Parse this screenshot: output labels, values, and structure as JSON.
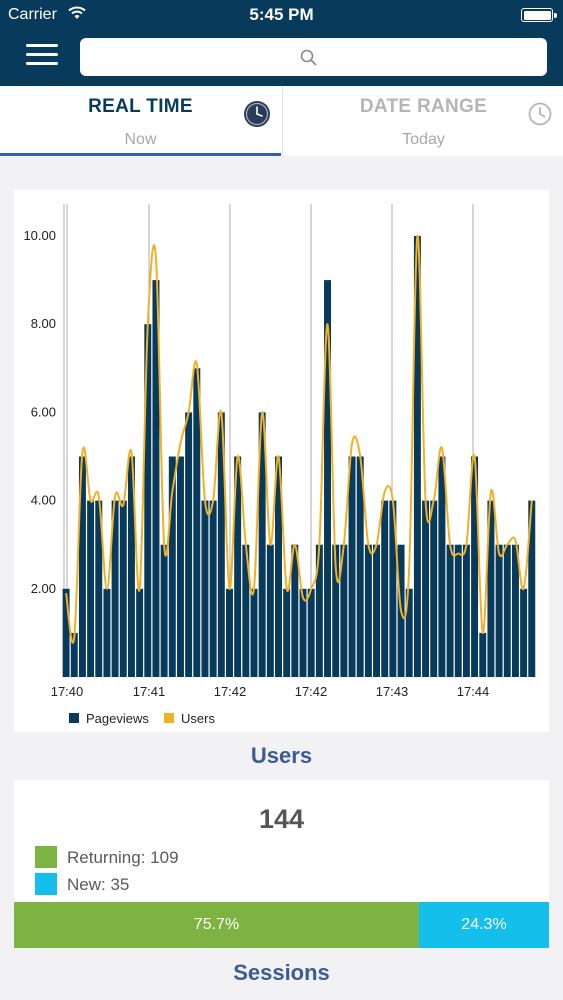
{
  "status_bar": {
    "carrier": "Carrier",
    "time": "5:45 PM"
  },
  "search": {
    "placeholder": ""
  },
  "tabs": [
    {
      "title": "REAL TIME",
      "subtitle": "Now",
      "active": true
    },
    {
      "title": "DATE RANGE",
      "subtitle": "Today",
      "active": false
    }
  ],
  "colors": {
    "header": "#073a5b",
    "pageviews": "#073a5b",
    "users_line": "#f2b025",
    "returning": "#7cb342",
    "new": "#14bfec",
    "section_title": "#3c5c94"
  },
  "icons": {
    "menu": "hamburger-icon",
    "search": "search-icon",
    "realtime": "clock-icon",
    "daterange": "clock-outline-icon"
  },
  "chart_data": {
    "type": "bar",
    "yticks": [
      "2.00",
      "4.00",
      "6.00",
      "8.00",
      "10.00"
    ],
    "ylim": [
      0,
      11
    ],
    "xticks": [
      "17:40",
      "17:41",
      "17:42",
      "17:42",
      "17:43",
      "17:44"
    ],
    "series": [
      {
        "name": "Pageviews",
        "kind": "bar",
        "values": [
          2,
          1,
          5,
          4,
          4,
          2,
          4,
          4,
          5,
          2,
          8,
          9,
          3,
          5,
          5,
          6,
          7,
          4,
          4,
          6,
          2,
          5,
          3,
          2,
          6,
          3,
          5,
          2,
          3,
          2,
          2,
          3,
          9,
          3,
          3,
          5,
          5,
          3,
          3,
          4,
          4,
          3,
          2,
          10,
          4,
          4,
          5,
          3,
          3,
          3,
          5,
          1,
          4,
          3,
          3,
          3,
          2,
          4
        ]
      },
      {
        "name": "Users",
        "kind": "line",
        "values": [
          1.9,
          0.9,
          5.1,
          4,
          4.1,
          2,
          4.1,
          3.9,
          5.1,
          2,
          8,
          9.5,
          3,
          4.2,
          5.3,
          6,
          7.1,
          4,
          4,
          6,
          2,
          5,
          3,
          2,
          6,
          3,
          5,
          2,
          3,
          1.8,
          2,
          3,
          8,
          2.5,
          3,
          5.3,
          5,
          3,
          3,
          4.2,
          4,
          1.5,
          2.5,
          10,
          4,
          4,
          5.2,
          3,
          2.8,
          3,
          5,
          1,
          4.2,
          2.8,
          3,
          3.1,
          2,
          4
        ]
      }
    ],
    "legend": [
      "Pageviews",
      "Users"
    ],
    "legend_placement": "bottom-left"
  },
  "users": {
    "title": "Users",
    "total": "144",
    "returning_label": "Returning: 109",
    "new_label": "New: 35",
    "returning_pct": "75.7%",
    "new_pct": "24.3%",
    "returning_fraction": 0.757
  },
  "sessions": {
    "title": "Sessions"
  }
}
